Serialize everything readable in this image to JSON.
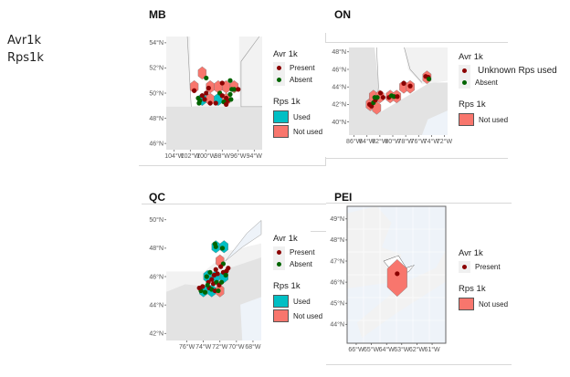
{
  "side_labels": [
    "Avr1k",
    "Rps1k"
  ],
  "colors": {
    "present": "#8b0000",
    "absent": "#006400",
    "used": "#00bfc4",
    "not_used": "#f8766d",
    "land": "#e3e3e3",
    "land_light": "#f2f2f2",
    "water": "#eef3f9"
  },
  "chart_data": [
    {
      "type": "scatter",
      "title": "MB",
      "xlabel": "",
      "ylabel": "",
      "x_ticks": [
        "104°W",
        "102°W",
        "100°W",
        "98°W",
        "96°W",
        "94°W"
      ],
      "y_ticks": [
        "46°N",
        "48°N",
        "50°N",
        "52°N",
        "54°N"
      ],
      "xlim": [
        -105,
        -93
      ],
      "ylim": [
        45.5,
        54.5
      ],
      "legend": {
        "avr_title": "Avr 1k",
        "avr_items": [
          {
            "label": "Present",
            "color": "#8b0000"
          },
          {
            "label": "Absent",
            "color": "#006400"
          }
        ],
        "rps_title": "Rps 1k",
        "rps_items": [
          {
            "label": "Used",
            "color": "#00bfc4"
          },
          {
            "label": "Not used",
            "color": "#f8766d"
          }
        ],
        "placement": "right"
      },
      "hexagons": [
        {
          "lon": -100.5,
          "lat": 51.6,
          "rps": "Not used"
        },
        {
          "lon": -101.5,
          "lat": 50.5,
          "rps": "Not used"
        },
        {
          "lon": -99.5,
          "lat": 50.5,
          "rps": "Not used"
        },
        {
          "lon": -98.5,
          "lat": 50.5,
          "rps": "Not used"
        },
        {
          "lon": -97.5,
          "lat": 50.5,
          "rps": "Not used"
        },
        {
          "lon": -96.5,
          "lat": 50.5,
          "rps": "Not used"
        },
        {
          "lon": -100.5,
          "lat": 49.5,
          "rps": "Used"
        },
        {
          "lon": -99.5,
          "lat": 49.5,
          "rps": "Not used"
        },
        {
          "lon": -98.5,
          "lat": 49.5,
          "rps": "Used"
        },
        {
          "lon": -97.5,
          "lat": 49.5,
          "rps": "Not used"
        }
      ],
      "points": [
        {
          "lon": -100.0,
          "lat": 51.2,
          "avr": "Absent"
        },
        {
          "lon": -101.5,
          "lat": 50.2,
          "avr": "Present"
        },
        {
          "lon": -99.7,
          "lat": 50.4,
          "avr": "Present"
        },
        {
          "lon": -100.0,
          "lat": 50.0,
          "avr": "Present"
        },
        {
          "lon": -100.5,
          "lat": 49.8,
          "avr": "Present"
        },
        {
          "lon": -100.2,
          "lat": 49.5,
          "avr": "Present"
        },
        {
          "lon": -100.8,
          "lat": 49.4,
          "avr": "Absent"
        },
        {
          "lon": -101.0,
          "lat": 49.6,
          "avr": "Absent"
        },
        {
          "lon": -100.9,
          "lat": 49.2,
          "avr": "Absent"
        },
        {
          "lon": -99.5,
          "lat": 49.2,
          "avr": "Present"
        },
        {
          "lon": -98.0,
          "lat": 50.8,
          "avr": "Present"
        },
        {
          "lon": -98.3,
          "lat": 50.0,
          "avr": "Absent"
        },
        {
          "lon": -98.0,
          "lat": 49.8,
          "avr": "Present"
        },
        {
          "lon": -97.5,
          "lat": 49.6,
          "avr": "Present"
        },
        {
          "lon": -97.3,
          "lat": 49.4,
          "avr": "Present"
        },
        {
          "lon": -97.8,
          "lat": 49.3,
          "avr": "Absent"
        },
        {
          "lon": -97.0,
          "lat": 49.9,
          "avr": "Absent"
        },
        {
          "lon": -96.8,
          "lat": 50.3,
          "avr": "Absent"
        },
        {
          "lon": -96.5,
          "lat": 50.3,
          "avr": "Absent"
        },
        {
          "lon": -96.0,
          "lat": 50.3,
          "avr": "Present"
        },
        {
          "lon": -97.0,
          "lat": 51.0,
          "avr": "Absent"
        },
        {
          "lon": -96.9,
          "lat": 49.5,
          "avr": "Absent"
        },
        {
          "lon": -98.8,
          "lat": 49.2,
          "avr": "Present"
        },
        {
          "lon": -97.5,
          "lat": 49.1,
          "avr": "Present"
        }
      ]
    },
    {
      "type": "scatter",
      "title": "ON",
      "xlabel": "",
      "ylabel": "",
      "x_ticks": [
        "86°W",
        "84°W",
        "82°W",
        "80°W",
        "78°W",
        "76°W",
        "74°W",
        "72°W"
      ],
      "y_ticks": [
        "40°N",
        "42°N",
        "44°N",
        "46°N",
        "48°N"
      ],
      "xlim": [
        -86.8,
        -71.5
      ],
      "ylim": [
        38.5,
        48.5
      ],
      "legend": {
        "avr_title": "Avr 1k",
        "avr_items": [
          {
            "label": "Unknown Rps used",
            "color": "#8b0000"
          },
          {
            "label": "Absent",
            "color": "#006400"
          }
        ],
        "rps_title": "Rps 1k",
        "rps_items": [
          {
            "label": "Not used",
            "color": "#f8766d"
          }
        ],
        "placement": "right"
      },
      "hexagons": [
        {
          "lon": -83.5,
          "lat": 42.0,
          "rps": "Not used"
        },
        {
          "lon": -82.5,
          "lat": 41.6,
          "rps": "Not used"
        },
        {
          "lon": -83.0,
          "lat": 42.9,
          "rps": "Not used"
        },
        {
          "lon": -82.0,
          "lat": 42.9,
          "rps": "Not used"
        },
        {
          "lon": -80.4,
          "lat": 42.9,
          "rps": "Not used"
        },
        {
          "lon": -79.4,
          "lat": 42.9,
          "rps": "Not used"
        },
        {
          "lon": -78.3,
          "lat": 44.0,
          "rps": "Not used"
        },
        {
          "lon": -77.3,
          "lat": 44.0,
          "rps": "Not used"
        },
        {
          "lon": -74.7,
          "lat": 45.1,
          "rps": "Not used"
        }
      ],
      "points": [
        {
          "lon": -83.6,
          "lat": 42.0,
          "avr": "Unknown Rps used"
        },
        {
          "lon": -83.3,
          "lat": 41.8,
          "avr": "Unknown Rps used"
        },
        {
          "lon": -83.0,
          "lat": 42.2,
          "avr": "Absent"
        },
        {
          "lon": -82.7,
          "lat": 42.5,
          "avr": "Unknown Rps used"
        },
        {
          "lon": -82.8,
          "lat": 42.8,
          "avr": "Absent"
        },
        {
          "lon": -82.4,
          "lat": 42.8,
          "avr": "Absent"
        },
        {
          "lon": -81.9,
          "lat": 43.3,
          "avr": "Unknown Rps used"
        },
        {
          "lon": -81.5,
          "lat": 42.8,
          "avr": "Unknown Rps used"
        },
        {
          "lon": -80.6,
          "lat": 42.8,
          "avr": "Unknown Rps used"
        },
        {
          "lon": -80.2,
          "lat": 43.0,
          "avr": "Absent"
        },
        {
          "lon": -79.8,
          "lat": 42.9,
          "avr": "Absent"
        },
        {
          "lon": -79.3,
          "lat": 42.9,
          "avr": "Unknown Rps used"
        },
        {
          "lon": -78.3,
          "lat": 44.4,
          "avr": "Unknown Rps used"
        },
        {
          "lon": -77.3,
          "lat": 44.1,
          "avr": "Unknown Rps used"
        },
        {
          "lon": -74.9,
          "lat": 45.2,
          "avr": "Unknown Rps used"
        },
        {
          "lon": -74.5,
          "lat": 45.1,
          "avr": "Unknown Rps used"
        },
        {
          "lon": -74.4,
          "lat": 44.9,
          "avr": "Absent"
        }
      ]
    },
    {
      "type": "scatter",
      "title": "QC",
      "xlabel": "",
      "ylabel": "",
      "x_ticks": [
        "76°W",
        "74°W",
        "72°W",
        "70°W",
        "68°W"
      ],
      "y_ticks": [
        "42°N",
        "44°N",
        "46°N",
        "48°N",
        "50°N"
      ],
      "xlim": [
        -78.5,
        -67
      ],
      "ylim": [
        41.5,
        50.5
      ],
      "legend": {
        "avr_title": "Avr 1k",
        "avr_items": [
          {
            "label": "Present",
            "color": "#8b0000"
          },
          {
            "label": "Absent",
            "color": "#006400"
          }
        ],
        "rps_title": "Rps 1k",
        "rps_items": [
          {
            "label": "Used",
            "color": "#00bfc4"
          },
          {
            "label": "Not used",
            "color": "#f8766d"
          }
        ],
        "placement": "right"
      },
      "hexagons": [
        {
          "lon": -72.5,
          "lat": 48.1,
          "rps": "Used"
        },
        {
          "lon": -71.5,
          "lat": 48.1,
          "rps": "Used"
        },
        {
          "lon": -72.0,
          "lat": 47.1,
          "rps": "Not used"
        },
        {
          "lon": -73.5,
          "lat": 46.0,
          "rps": "Used"
        },
        {
          "lon": -72.5,
          "lat": 46.0,
          "rps": "Used"
        },
        {
          "lon": -71.5,
          "lat": 46.0,
          "rps": "Used"
        },
        {
          "lon": -74.0,
          "lat": 45.0,
          "rps": "Used"
        },
        {
          "lon": -73.0,
          "lat": 45.0,
          "rps": "Used"
        },
        {
          "lon": -72.0,
          "lat": 45.0,
          "rps": "Not used"
        }
      ],
      "points": [
        {
          "lon": -72.6,
          "lat": 48.3,
          "avr": "Absent"
        },
        {
          "lon": -72.5,
          "lat": 48.1,
          "avr": "Absent"
        },
        {
          "lon": -71.7,
          "lat": 48.0,
          "avr": "Absent"
        },
        {
          "lon": -71.6,
          "lat": 46.9,
          "avr": "Absent"
        },
        {
          "lon": -71.9,
          "lat": 46.7,
          "avr": "Present"
        },
        {
          "lon": -71.2,
          "lat": 46.4,
          "avr": "Present"
        },
        {
          "lon": -71.0,
          "lat": 46.6,
          "avr": "Present"
        },
        {
          "lon": -71.6,
          "lat": 46.3,
          "avr": "Present"
        },
        {
          "lon": -71.3,
          "lat": 46.1,
          "avr": "Absent"
        },
        {
          "lon": -72.5,
          "lat": 46.5,
          "avr": "Present"
        },
        {
          "lon": -72.3,
          "lat": 46.2,
          "avr": "Present"
        },
        {
          "lon": -72.7,
          "lat": 46.1,
          "avr": "Present"
        },
        {
          "lon": -73.2,
          "lat": 46.3,
          "avr": "Absent"
        },
        {
          "lon": -73.6,
          "lat": 46.0,
          "avr": "Absent"
        },
        {
          "lon": -73.4,
          "lat": 45.6,
          "avr": "Present"
        },
        {
          "lon": -73.0,
          "lat": 45.8,
          "avr": "Present"
        },
        {
          "lon": -72.8,
          "lat": 45.5,
          "avr": "Present"
        },
        {
          "lon": -72.4,
          "lat": 45.6,
          "avr": "Absent"
        },
        {
          "lon": -72.1,
          "lat": 45.4,
          "avr": "Present"
        },
        {
          "lon": -71.8,
          "lat": 45.6,
          "avr": "Absent"
        },
        {
          "lon": -73.3,
          "lat": 45.2,
          "avr": "Present"
        },
        {
          "lon": -73.0,
          "lat": 45.1,
          "avr": "Absent"
        },
        {
          "lon": -72.6,
          "lat": 45.0,
          "avr": "Present"
        },
        {
          "lon": -72.2,
          "lat": 45.0,
          "avr": "Absent"
        },
        {
          "lon": -74.1,
          "lat": 45.3,
          "avr": "Present"
        },
        {
          "lon": -74.3,
          "lat": 45.0,
          "avr": "Absent"
        },
        {
          "lon": -74.5,
          "lat": 45.2,
          "avr": "Present"
        },
        {
          "lon": -73.8,
          "lat": 44.9,
          "avr": "Absent"
        },
        {
          "lon": -73.5,
          "lat": 45.4,
          "avr": "Absent"
        }
      ]
    },
    {
      "type": "scatter",
      "title": "PEI",
      "xlabel": "",
      "ylabel": "",
      "x_ticks": [
        "66°W",
        "65°W",
        "64°W",
        "63°W",
        "62°W",
        "61°W"
      ],
      "y_ticks": [
        "44°N",
        "45°N",
        "46°N",
        "47°N",
        "48°N",
        "49°N"
      ],
      "xlim": [
        -66.6,
        -60.1
      ],
      "ylim": [
        43.1,
        49.6
      ],
      "legend": {
        "avr_title": "Avr 1k",
        "avr_items": [
          {
            "label": "Present",
            "color": "#8b0000"
          }
        ],
        "rps_title": "Rps 1k",
        "rps_items": [
          {
            "label": "Not used",
            "color": "#f8766d"
          }
        ],
        "placement": "right"
      },
      "hexagons": [
        {
          "lon": -63.3,
          "lat": 46.2,
          "rps": "Not used"
        }
      ],
      "points": [
        {
          "lon": -63.3,
          "lat": 46.4,
          "avr": "Present"
        }
      ]
    }
  ]
}
